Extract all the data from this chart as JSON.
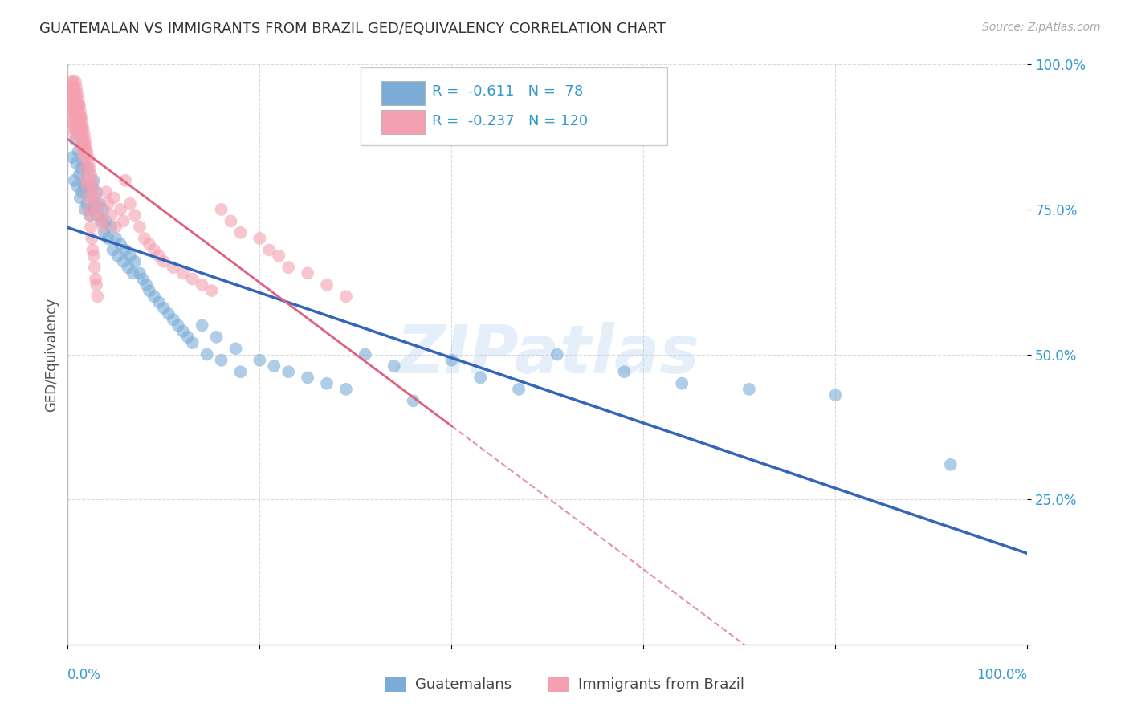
{
  "title": "GUATEMALAN VS IMMIGRANTS FROM BRAZIL GED/EQUIVALENCY CORRELATION CHART",
  "source": "Source: ZipAtlas.com",
  "ylabel": "GED/Equivalency",
  "blue_R": "-0.611",
  "blue_N": "78",
  "pink_R": "-0.237",
  "pink_N": "120",
  "blue_color": "#7aacd6",
  "pink_color": "#f4a0b0",
  "blue_line_color": "#3366bb",
  "pink_line_color": "#e06080",
  "watermark": "ZIPatlas",
  "legend_label_blue": "Guatemalans",
  "legend_label_pink": "Immigrants from Brazil",
  "blue_scatter_x": [
    0.005,
    0.007,
    0.008,
    0.009,
    0.01,
    0.011,
    0.012,
    0.013,
    0.014,
    0.015,
    0.016,
    0.017,
    0.018,
    0.019,
    0.02,
    0.021,
    0.022,
    0.023,
    0.025,
    0.026,
    0.027,
    0.028,
    0.03,
    0.031,
    0.033,
    0.035,
    0.037,
    0.038,
    0.04,
    0.042,
    0.045,
    0.047,
    0.05,
    0.052,
    0.055,
    0.058,
    0.06,
    0.063,
    0.065,
    0.068,
    0.07,
    0.075,
    0.078,
    0.082,
    0.085,
    0.09,
    0.095,
    0.1,
    0.105,
    0.11,
    0.115,
    0.12,
    0.125,
    0.13,
    0.14,
    0.145,
    0.155,
    0.16,
    0.175,
    0.18,
    0.2,
    0.215,
    0.23,
    0.25,
    0.27,
    0.29,
    0.31,
    0.34,
    0.36,
    0.4,
    0.43,
    0.47,
    0.51,
    0.58,
    0.64,
    0.71,
    0.8,
    0.92
  ],
  "blue_scatter_y": [
    0.84,
    0.8,
    0.87,
    0.83,
    0.79,
    0.85,
    0.81,
    0.77,
    0.82,
    0.78,
    0.83,
    0.79,
    0.75,
    0.8,
    0.76,
    0.82,
    0.78,
    0.74,
    0.79,
    0.75,
    0.8,
    0.76,
    0.78,
    0.74,
    0.76,
    0.73,
    0.75,
    0.71,
    0.73,
    0.7,
    0.72,
    0.68,
    0.7,
    0.67,
    0.69,
    0.66,
    0.68,
    0.65,
    0.67,
    0.64,
    0.66,
    0.64,
    0.63,
    0.62,
    0.61,
    0.6,
    0.59,
    0.58,
    0.57,
    0.56,
    0.55,
    0.54,
    0.53,
    0.52,
    0.55,
    0.5,
    0.53,
    0.49,
    0.51,
    0.47,
    0.49,
    0.48,
    0.47,
    0.46,
    0.45,
    0.44,
    0.5,
    0.48,
    0.42,
    0.49,
    0.46,
    0.44,
    0.5,
    0.47,
    0.45,
    0.44,
    0.43,
    0.31
  ],
  "pink_scatter_x": [
    0.002,
    0.003,
    0.003,
    0.004,
    0.004,
    0.004,
    0.005,
    0.005,
    0.005,
    0.005,
    0.006,
    0.006,
    0.006,
    0.006,
    0.006,
    0.007,
    0.007,
    0.007,
    0.007,
    0.007,
    0.008,
    0.008,
    0.008,
    0.008,
    0.008,
    0.009,
    0.009,
    0.009,
    0.009,
    0.01,
    0.01,
    0.01,
    0.01,
    0.011,
    0.011,
    0.011,
    0.011,
    0.012,
    0.012,
    0.012,
    0.013,
    0.013,
    0.013,
    0.014,
    0.014,
    0.015,
    0.015,
    0.015,
    0.016,
    0.016,
    0.017,
    0.017,
    0.018,
    0.018,
    0.019,
    0.02,
    0.021,
    0.022,
    0.023,
    0.024,
    0.025,
    0.026,
    0.027,
    0.028,
    0.03,
    0.031,
    0.033,
    0.035,
    0.037,
    0.04,
    0.042,
    0.045,
    0.048,
    0.05,
    0.055,
    0.058,
    0.06,
    0.065,
    0.07,
    0.075,
    0.08,
    0.085,
    0.09,
    0.095,
    0.1,
    0.11,
    0.12,
    0.13,
    0.14,
    0.15,
    0.16,
    0.17,
    0.18,
    0.2,
    0.21,
    0.22,
    0.23,
    0.25,
    0.27,
    0.29,
    0.012,
    0.013,
    0.014,
    0.015,
    0.016,
    0.017,
    0.018,
    0.019,
    0.02,
    0.021,
    0.022,
    0.023,
    0.024,
    0.025,
    0.026,
    0.027,
    0.028,
    0.029,
    0.03,
    0.031
  ],
  "pink_scatter_y": [
    0.94,
    0.96,
    0.92,
    0.97,
    0.95,
    0.93,
    0.96,
    0.94,
    0.92,
    0.9,
    0.97,
    0.95,
    0.93,
    0.91,
    0.89,
    0.96,
    0.94,
    0.92,
    0.9,
    0.88,
    0.97,
    0.95,
    0.93,
    0.91,
    0.89,
    0.96,
    0.94,
    0.92,
    0.9,
    0.95,
    0.93,
    0.91,
    0.89,
    0.94,
    0.92,
    0.9,
    0.88,
    0.93,
    0.91,
    0.89,
    0.92,
    0.9,
    0.88,
    0.91,
    0.89,
    0.9,
    0.88,
    0.86,
    0.89,
    0.87,
    0.88,
    0.86,
    0.87,
    0.85,
    0.86,
    0.85,
    0.84,
    0.83,
    0.82,
    0.81,
    0.8,
    0.79,
    0.78,
    0.77,
    0.76,
    0.75,
    0.74,
    0.73,
    0.72,
    0.78,
    0.76,
    0.74,
    0.77,
    0.72,
    0.75,
    0.73,
    0.8,
    0.76,
    0.74,
    0.72,
    0.7,
    0.69,
    0.68,
    0.67,
    0.66,
    0.65,
    0.64,
    0.63,
    0.62,
    0.61,
    0.75,
    0.73,
    0.71,
    0.7,
    0.68,
    0.67,
    0.65,
    0.64,
    0.62,
    0.6,
    0.93,
    0.91,
    0.89,
    0.87,
    0.85,
    0.84,
    0.82,
    0.8,
    0.79,
    0.77,
    0.75,
    0.74,
    0.72,
    0.7,
    0.68,
    0.67,
    0.65,
    0.63,
    0.62,
    0.6
  ]
}
